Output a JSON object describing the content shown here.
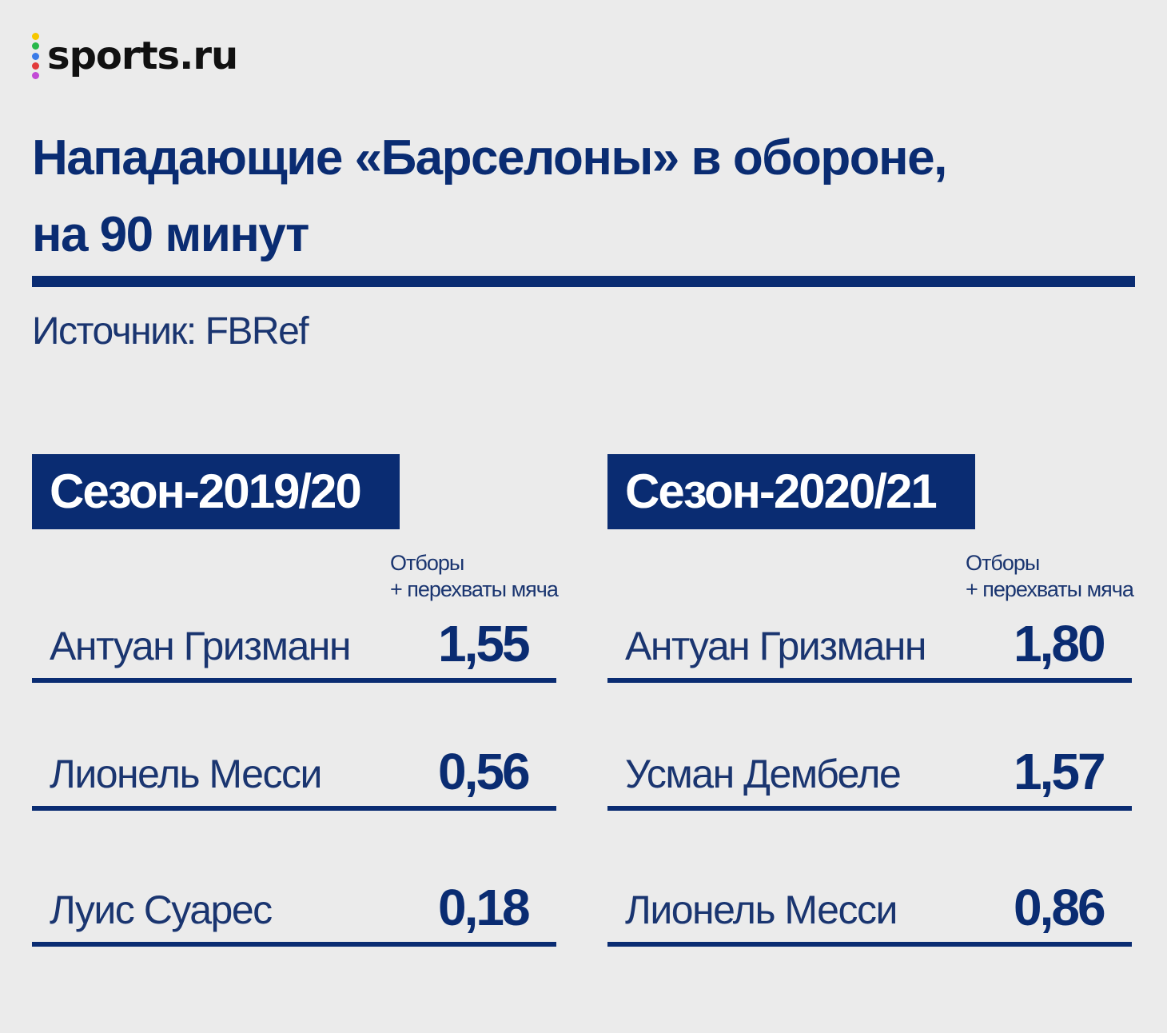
{
  "logo": {
    "text": "sports.ru",
    "dot_colors": [
      "#f6c700",
      "#27b84a",
      "#3b7be8",
      "#e23b3b",
      "#c24ad6"
    ]
  },
  "colors": {
    "background": "#ebebeb",
    "accent": "#0a2c72",
    "season_label_text": "#ffffff"
  },
  "chart_data": {
    "type": "table",
    "title_lines": [
      "Нападающие «Барселоны» в обороне,",
      "на 90 минут"
    ],
    "source": "Источник: FBRef",
    "column_header": [
      "Отборы",
      "+ перехваты мяча"
    ],
    "panels": [
      {
        "season": "Сезон-2019/20",
        "rows": [
          {
            "player": "Антуан Гризманн",
            "value": "1,55"
          },
          {
            "player": "Лионель Месси",
            "value": "0,56"
          },
          {
            "player": "Луис Суарес",
            "value": "0,18"
          }
        ]
      },
      {
        "season": "Сезон-2020/21",
        "rows": [
          {
            "player": "Антуан Гризманн",
            "value": "1,80"
          },
          {
            "player": "Усман Дембеле",
            "value": "1,57"
          },
          {
            "player": "Лионель Месси",
            "value": "0,86"
          }
        ]
      }
    ]
  }
}
